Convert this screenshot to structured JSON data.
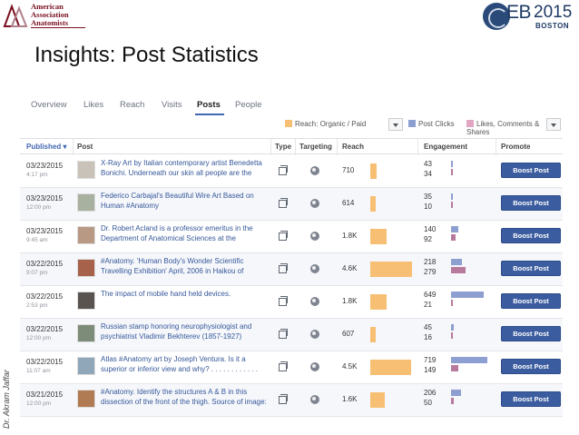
{
  "header": {
    "org_logo_lines": [
      "American",
      "Association",
      "Anatomists"
    ],
    "conference_logo": {
      "name": "EB",
      "year": "2015",
      "city": "BOSTON"
    },
    "title": "Insights: Post Statistics",
    "author_credit": "Dr. Akram Jaffar"
  },
  "insights": {
    "tabs": [
      {
        "label": "Overview",
        "active": false
      },
      {
        "label": "Likes",
        "active": false
      },
      {
        "label": "Reach",
        "active": false
      },
      {
        "label": "Visits",
        "active": false
      },
      {
        "label": "Posts",
        "active": true
      },
      {
        "label": "People",
        "active": false
      }
    ],
    "legend": {
      "reach": {
        "label": "Reach: Organic / Paid",
        "color": "#f7bf74"
      },
      "clicks": {
        "label": "Post Clicks",
        "color": "#8d9fd0"
      },
      "engagement": {
        "label": "Likes, Comments & Shares",
        "color": "#e3a6c2"
      }
    },
    "columns": {
      "published": "Published",
      "post": "Post",
      "type": "Type",
      "targeting": "Targeting",
      "reach": "Reach",
      "engagement": "Engagement",
      "promote": "Promote"
    },
    "boost_label": "Boost Post",
    "rows": [
      {
        "date": "03/23/2015",
        "time": "4:17 pm",
        "text": "X-Ray Art by Italian contemporary artist Benedetta Bonichi. Underneath our skin all people are the",
        "reach": "710",
        "reach_value": 710,
        "clicks": "43",
        "clicks_value": 43,
        "likes": "34",
        "likes_value": 34,
        "thumb_color": "#c9c2b8"
      },
      {
        "date": "03/23/2015",
        "time": "12:00 pm",
        "text": "Federico Carbajal's Beautiful Wire Art Based on Human #Anatomy",
        "reach": "614",
        "reach_value": 614,
        "clicks": "35",
        "clicks_value": 35,
        "likes": "10",
        "likes_value": 10,
        "thumb_color": "#a8b0a0"
      },
      {
        "date": "03/23/2015",
        "time": "9:45 am",
        "text": "Dr. Robert Acland is a professor emeritus in the Department of Anatomical Sciences at the",
        "reach": "1.8K",
        "reach_value": 1800,
        "clicks": "140",
        "clicks_value": 140,
        "likes": "92",
        "likes_value": 92,
        "thumb_color": "#b89a84"
      },
      {
        "date": "03/22/2015",
        "time": "9:07 pm",
        "text": "#Anatomy. 'Human Body's Wonder Scientific Travelling Exhibition' April, 2006 in Haikou of",
        "reach": "4.6K",
        "reach_value": 4600,
        "clicks": "218",
        "clicks_value": 218,
        "likes": "279",
        "likes_value": 279,
        "thumb_color": "#a6624a"
      },
      {
        "date": "03/22/2015",
        "time": "2:53 pm",
        "text": "The impact of mobile hand held devices.",
        "reach": "1.8K",
        "reach_value": 1800,
        "clicks": "649",
        "clicks_value": 649,
        "likes": "21",
        "likes_value": 21,
        "thumb_color": "#5a5450"
      },
      {
        "date": "03/22/2015",
        "time": "12:00 pm",
        "text": "Russian stamp honoring neurophysiologist and psychiatrist Vladimir Bekhterev (1857-1927)",
        "reach": "607",
        "reach_value": 607,
        "clicks": "45",
        "clicks_value": 45,
        "likes": "16",
        "likes_value": 16,
        "thumb_color": "#7c8c78"
      },
      {
        "date": "03/22/2015",
        "time": "11:07 am",
        "text": "Atlas #Anatomy art by Joseph Ventura. Is it a superior or inferior view and why? . . . . . . . . . . . .",
        "reach": "4.5K",
        "reach_value": 4500,
        "clicks": "719",
        "clicks_value": 719,
        "likes": "149",
        "likes_value": 149,
        "thumb_color": "#8fa7b8"
      },
      {
        "date": "03/21/2015",
        "time": "12:00 pm",
        "text": "#Anatomy. Identify the structures A & B in this dissection of the front of the thigh. Source of image:",
        "reach": "1.6K",
        "reach_value": 1600,
        "clicks": "206",
        "clicks_value": 206,
        "likes": "50",
        "likes_value": 50,
        "thumb_color": "#b07a52"
      }
    ]
  }
}
